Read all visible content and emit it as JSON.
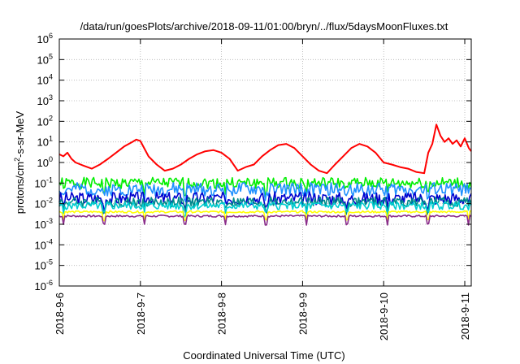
{
  "chart_data": {
    "type": "line",
    "title": "/data/run/goesPlots/archive/2018-09-11/01:00/bryn/../flux/5daysMoonFluxes.txt",
    "xlabel": "Coordinated Universal Time (UTC)",
    "ylabel": {
      "prefix": "protons/cm",
      "sup": "2",
      "suffix": "-s-sr-MeV"
    },
    "xlim": [
      0,
      5.08
    ],
    "ylim_log10": [
      -6,
      6
    ],
    "log_y": true,
    "grid": true,
    "x_ticks": [
      {
        "x": 0,
        "label": "2018-9-6"
      },
      {
        "x": 1,
        "label": "2018-9-7"
      },
      {
        "x": 2,
        "label": "2018-9-8"
      },
      {
        "x": 3,
        "label": "2018-9-9"
      },
      {
        "x": 4,
        "label": "2018-9-10"
      },
      {
        "x": 5,
        "label": "2018-9-11"
      }
    ],
    "y_ticks": [
      {
        "exp": -6,
        "label": "10",
        "sup": "-6"
      },
      {
        "exp": -5,
        "label": "10",
        "sup": "-5"
      },
      {
        "exp": -4,
        "label": "10",
        "sup": "-4"
      },
      {
        "exp": -3,
        "label": "10",
        "sup": "-3"
      },
      {
        "exp": -2,
        "label": "10",
        "sup": "-2"
      },
      {
        "exp": -1,
        "label": "10",
        "sup": "-1"
      },
      {
        "exp": 0,
        "label": "10",
        "sup": "0"
      },
      {
        "exp": 1,
        "label": "10",
        "sup": "1"
      },
      {
        "exp": 2,
        "label": "10",
        "sup": "2"
      },
      {
        "exp": 3,
        "label": "10",
        "sup": "3"
      },
      {
        "exp": 4,
        "label": "10",
        "sup": "4"
      },
      {
        "exp": 5,
        "label": "10",
        "sup": "5"
      },
      {
        "exp": 6,
        "label": "10",
        "sup": "6"
      }
    ],
    "series": [
      {
        "color": "#ff0000",
        "x": [
          0,
          0.05,
          0.1,
          0.15,
          0.2,
          0.3,
          0.4,
          0.5,
          0.6,
          0.7,
          0.8,
          0.9,
          0.95,
          1,
          1.1,
          1.2,
          1.3,
          1.4,
          1.5,
          1.6,
          1.7,
          1.8,
          1.9,
          2,
          2.1,
          2.2,
          2.3,
          2.4,
          2.5,
          2.6,
          2.7,
          2.8,
          2.9,
          3,
          3.1,
          3.2,
          3.3,
          3.4,
          3.5,
          3.6,
          3.7,
          3.8,
          3.9,
          4,
          4.1,
          4.2,
          4.3,
          4.4,
          4.5,
          4.55,
          4.6,
          4.65,
          4.7,
          4.75,
          4.8,
          4.85,
          4.9,
          4.95,
          5,
          5.05,
          5.08
        ],
        "y": [
          2.5,
          2,
          3,
          1.5,
          1,
          0.7,
          0.5,
          0.8,
          1.5,
          3,
          6,
          10,
          13,
          11,
          2,
          0.8,
          0.4,
          0.5,
          0.8,
          1.5,
          2.5,
          3.5,
          4,
          3,
          1.5,
          0.4,
          0.6,
          0.8,
          2,
          4,
          7,
          8,
          5,
          2,
          0.8,
          0.4,
          0.3,
          0.8,
          2,
          5,
          8,
          6,
          3,
          1,
          0.8,
          0.6,
          0.5,
          0.35,
          0.3,
          3,
          8,
          70,
          20,
          10,
          15,
          8,
          12,
          6,
          15,
          5,
          3.5
        ]
      },
      {
        "color": "#00ee00",
        "base": 0.1,
        "amp": 0.17,
        "seed": 1
      },
      {
        "color": "#1e90ff",
        "base": 0.05,
        "amp": 0.2,
        "seed": 2
      },
      {
        "color": "#0000cd",
        "base": 0.018,
        "amp": 0.2,
        "seed": 3
      },
      {
        "color": "#008b8b",
        "base": 0.012,
        "amp": 0.15,
        "seed": 4
      },
      {
        "color": "#00ced1",
        "base": 0.008,
        "amp": 0.12,
        "seed": 5
      },
      {
        "color": "#ffff00",
        "base": 0.004,
        "amp": 0.03,
        "seed": 6
      },
      {
        "color": "#8b2d8b",
        "base": 0.0025,
        "amp": 0.03,
        "seed": 7
      }
    ]
  }
}
